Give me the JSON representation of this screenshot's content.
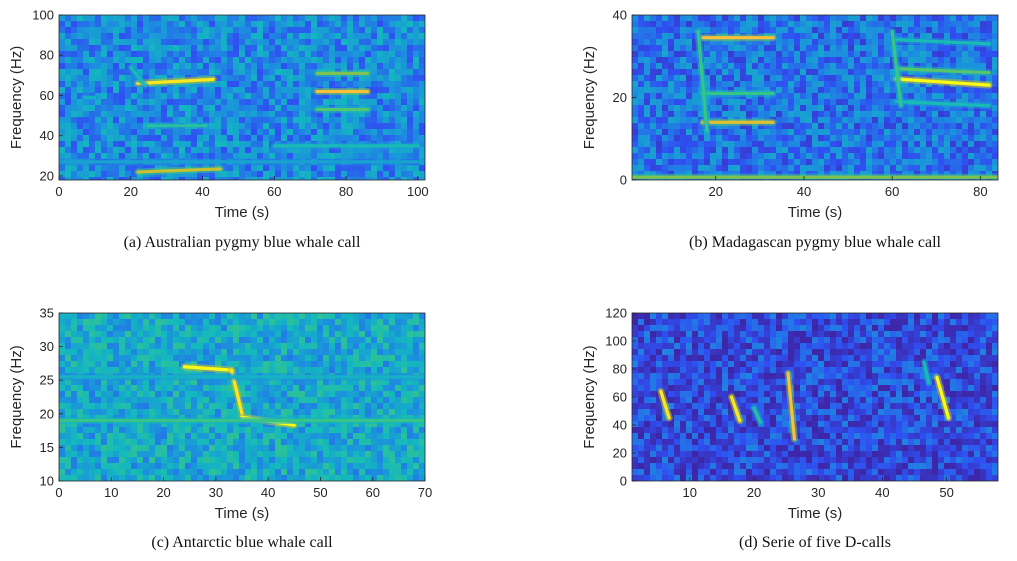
{
  "colormap": [
    "#3e26a8",
    "#2f4ff2",
    "#1c8fdf",
    "#13b9be",
    "#3dc680",
    "#b4c12d",
    "#fec037",
    "#f9fb15"
  ],
  "chart_data": [
    {
      "type": "heatmap",
      "caption": "(a) Australian pygmy blue whale call",
      "xlabel": "Time (s)",
      "ylabel": "Frequency (Hz)",
      "xlim": [
        0,
        102
      ],
      "ylim": [
        18,
        100
      ],
      "xticks": [
        0,
        20,
        40,
        60,
        80,
        100
      ],
      "yticks": [
        20,
        40,
        60,
        80,
        100
      ],
      "background_level": 0.28,
      "calls": [
        {
          "t": [
            22,
            43
          ],
          "f": [
            66,
            68
          ],
          "intensity": 0.95
        },
        {
          "t": [
            25,
            41
          ],
          "f": [
            45,
            45
          ],
          "intensity": 0.5
        },
        {
          "t": [
            22,
            45
          ],
          "f": [
            22,
            23.5
          ],
          "intensity": 0.75
        },
        {
          "t": [
            20,
            24
          ],
          "f": [
            74,
            65
          ],
          "intensity": 0.45
        },
        {
          "t": [
            7,
            10
          ],
          "f": [
            59,
            59
          ],
          "intensity": 0.4
        },
        {
          "t": [
            72,
            86
          ],
          "f": [
            71,
            71
          ],
          "intensity": 0.65
        },
        {
          "t": [
            72,
            86
          ],
          "f": [
            62,
            62
          ],
          "intensity": 0.85
        },
        {
          "t": [
            72,
            86
          ],
          "f": [
            53,
            53
          ],
          "intensity": 0.6
        },
        {
          "t": [
            60,
            100
          ],
          "f": [
            35,
            35
          ],
          "intensity": 0.45
        },
        {
          "t": [
            0,
            102
          ],
          "f": [
            27,
            27
          ],
          "intensity": 0.35
        }
      ]
    },
    {
      "type": "heatmap",
      "caption": "(b) Madagascan pygmy blue whale call",
      "xlabel": "Time (s)",
      "ylabel": "Frequency (Hz)",
      "xlim": [
        1,
        84
      ],
      "ylim": [
        0,
        40
      ],
      "xticks": [
        20,
        40,
        60,
        80
      ],
      "yticks": [
        0,
        20,
        40
      ],
      "background_level": 0.22,
      "calls": [
        {
          "t": [
            17,
            33
          ],
          "f": [
            34.5,
            34.5
          ],
          "intensity": 0.85
        },
        {
          "t": [
            17,
            33
          ],
          "f": [
            21,
            21
          ],
          "intensity": 0.55
        },
        {
          "t": [
            17,
            33
          ],
          "f": [
            14,
            14
          ],
          "intensity": 0.8
        },
        {
          "t": [
            16,
            18
          ],
          "f": [
            36,
            12
          ],
          "intensity": 0.55
        },
        {
          "t": [
            61,
            82
          ],
          "f": [
            24.5,
            23
          ],
          "intensity": 1.0
        },
        {
          "t": [
            61,
            82
          ],
          "f": [
            27,
            26
          ],
          "intensity": 0.6
        },
        {
          "t": [
            61,
            82
          ],
          "f": [
            34,
            33
          ],
          "intensity": 0.45
        },
        {
          "t": [
            61,
            82
          ],
          "f": [
            19,
            18
          ],
          "intensity": 0.45
        },
        {
          "t": [
            60,
            62
          ],
          "f": [
            36,
            18
          ],
          "intensity": 0.55
        },
        {
          "t": [
            1,
            84
          ],
          "f": [
            0.7,
            0.7
          ],
          "intensity": 0.65
        }
      ]
    },
    {
      "type": "heatmap",
      "caption": "(c) Antarctic blue whale call",
      "xlabel": "Time (s)",
      "ylabel": "Frequency (Hz)",
      "xlim": [
        0,
        70
      ],
      "ylim": [
        10,
        35
      ],
      "xticks": [
        0,
        10,
        20,
        30,
        40,
        50,
        60,
        70
      ],
      "yticks": [
        10,
        15,
        20,
        25,
        30,
        35
      ],
      "background_level": 0.38,
      "calls": [
        {
          "t": [
            24,
            33
          ],
          "f": [
            27,
            26.5
          ],
          "intensity": 1.0
        },
        {
          "t": [
            33,
            35
          ],
          "f": [
            26.5,
            20
          ],
          "intensity": 0.95
        },
        {
          "t": [
            35,
            45
          ],
          "f": [
            19.5,
            18.3
          ],
          "intensity": 1.0
        },
        {
          "t": [
            0,
            70
          ],
          "f": [
            19,
            19
          ],
          "intensity": 0.55
        },
        {
          "t": [
            0,
            70
          ],
          "f": [
            25.5,
            25.5
          ],
          "intensity": 0.4
        }
      ]
    },
    {
      "type": "heatmap",
      "caption": "(d) Serie of five D-calls",
      "xlabel": "Time (s)",
      "ylabel": "Frequency (Hz)",
      "xlim": [
        1,
        58
      ],
      "ylim": [
        0,
        120
      ],
      "xticks": [
        10,
        20,
        30,
        40,
        50
      ],
      "yticks": [
        0,
        20,
        40,
        60,
        80,
        100,
        120
      ],
      "background_level": 0.12,
      "calls": [
        {
          "t": [
            5.5,
            6.8
          ],
          "f": [
            64,
            45
          ],
          "intensity": 0.95
        },
        {
          "t": [
            16.5,
            17.8
          ],
          "f": [
            60,
            43
          ],
          "intensity": 0.95
        },
        {
          "t": [
            20,
            21
          ],
          "f": [
            52,
            42
          ],
          "intensity": 0.5
        },
        {
          "t": [
            25.3,
            26.3
          ],
          "f": [
            77,
            30
          ],
          "intensity": 0.85
        },
        {
          "t": [
            48.5,
            50.3
          ],
          "f": [
            74,
            45
          ],
          "intensity": 1.0
        },
        {
          "t": [
            46.5,
            47.2
          ],
          "f": [
            85,
            70
          ],
          "intensity": 0.45
        }
      ]
    }
  ]
}
